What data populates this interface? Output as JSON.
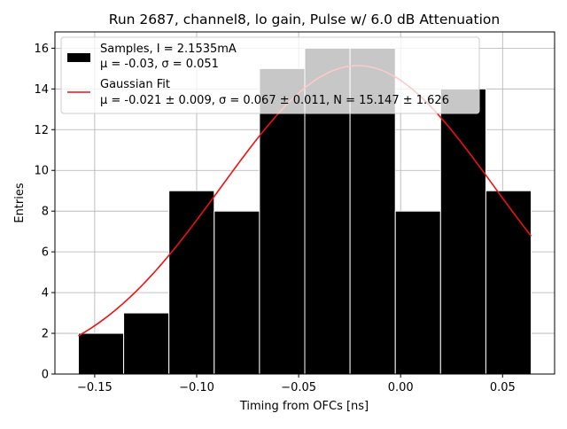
{
  "chart_data": {
    "type": "bar",
    "title": "Run 2687, channel8, lo gain, Pulse w/ 6.0 dB Attenuation",
    "xlabel": "Timing from OFCs [ns]",
    "ylabel": "Entries",
    "xlim": [
      -0.1695,
      0.0755
    ],
    "ylim": [
      0,
      16.8
    ],
    "xticks": [
      -0.15,
      -0.1,
      -0.05,
      0.0,
      0.05
    ],
    "xtick_labels": [
      "−0.15",
      "−0.10",
      "−0.05",
      "0.00",
      "0.05"
    ],
    "yticks": [
      0,
      2,
      4,
      6,
      8,
      10,
      12,
      14,
      16
    ],
    "ytick_labels": [
      "0",
      "2",
      "4",
      "6",
      "8",
      "10",
      "12",
      "14",
      "16"
    ],
    "grid": true,
    "legend_position": "top-left",
    "histogram": {
      "bin_edges": [
        -0.158,
        -0.1358,
        -0.1136,
        -0.0914,
        -0.0692,
        -0.047,
        -0.0248,
        -0.0026,
        0.0196,
        0.0418,
        0.064
      ],
      "counts": [
        2,
        3,
        9,
        8,
        15,
        16,
        16,
        8,
        14,
        9
      ],
      "color": "#000000",
      "edgecolor": "#ffffff"
    },
    "fit": {
      "mu": -0.021,
      "sigma": 0.067,
      "N": 15.147,
      "x_range": [
        -0.158,
        0.064
      ],
      "color": "#ee1111"
    },
    "legend": [
      {
        "line1": "Samples, I = 2.1535mA",
        "line2": "μ = -0.03, σ = 0.051"
      },
      {
        "line1": "Gaussian Fit",
        "line2": "μ = -0.021 ± 0.009, σ = 0.067 ± 0.011, N = 15.147 ± 1.626"
      }
    ]
  }
}
